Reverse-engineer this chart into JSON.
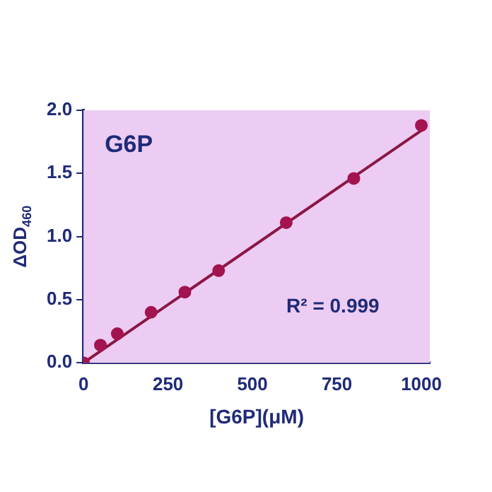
{
  "chart_data": {
    "type": "scatter",
    "xlabel": "[G6P](μM)",
    "ylabel": "ΔOD$_{460}$",
    "annotations": [
      "G6P",
      "R² = 0.999"
    ],
    "series": [
      {
        "color": "#a3134f",
        "x": [
          0,
          50,
          100,
          200,
          300,
          400,
          600,
          800,
          1000
        ],
        "values": [
          0,
          0.14,
          0.23,
          0.4,
          0.56,
          0.73,
          1.11,
          1.46,
          1.88
        ]
      },
      {
        "type": "line",
        "marker": "none",
        "color": "#8b1744",
        "x": [
          0,
          1000
        ],
        "values": [
          0,
          1.84
        ]
      }
    ],
    "xlim": [
      0,
      1025
    ],
    "xticks": [
      0,
      250,
      500,
      750,
      1000
    ],
    "ylim": [
      0,
      2
    ],
    "yticks": [
      {
        "value": 0,
        "label": "0.0"
      },
      {
        "value": 0.5,
        "label": "0.5"
      },
      {
        "value": 1,
        "label": "1.0"
      },
      {
        "value": 1.5,
        "label": "1.5"
      },
      {
        "value": 2,
        "label": "2.0"
      }
    ],
    "marker": "circle",
    "grid": false,
    "legend": false
  }
}
